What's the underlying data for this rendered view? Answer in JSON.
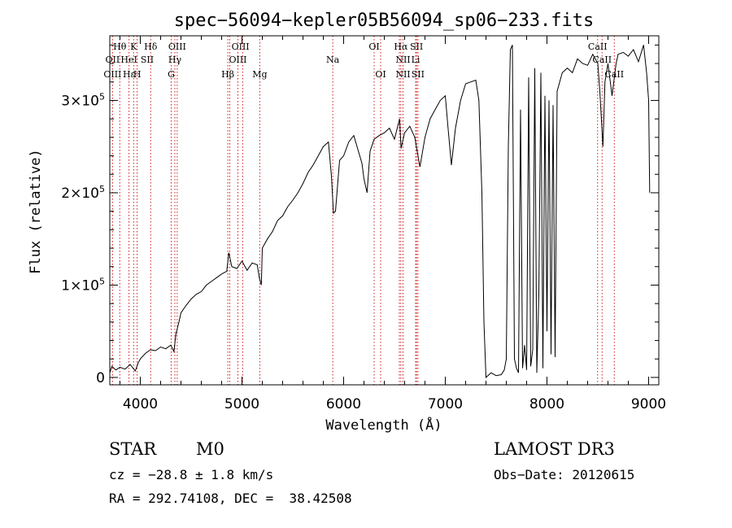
{
  "chart_data": {
    "type": "line",
    "title": "spec−56094−kepler05B56094_sp06−233.fits",
    "xlabel": "Wavelength (Å)",
    "ylabel": "Flux (relative)",
    "xlim": [
      3700,
      9100
    ],
    "ylim": [
      -8000,
      370000
    ],
    "x_ticks": [
      {
        "value": 4000,
        "label": "4000"
      },
      {
        "value": 5000,
        "label": "5000"
      },
      {
        "value": 6000,
        "label": "6000"
      },
      {
        "value": 7000,
        "label": "7000"
      },
      {
        "value": 8000,
        "label": "8000"
      },
      {
        "value": 9000,
        "label": "9000"
      }
    ],
    "y_ticks": [
      {
        "value": 0,
        "mant": "0",
        "exp": ""
      },
      {
        "value": 100000,
        "mant": "1×10",
        "exp": "5"
      },
      {
        "value": 200000,
        "mant": "2×10",
        "exp": "5"
      },
      {
        "value": 300000,
        "mant": "3×10",
        "exp": "5"
      }
    ],
    "series": [
      {
        "name": "flux",
        "points": [
          [
            3700,
            5000
          ],
          [
            3720,
            12000
          ],
          [
            3760,
            8000
          ],
          [
            3800,
            11000
          ],
          [
            3850,
            9000
          ],
          [
            3900,
            14000
          ],
          [
            3950,
            7000
          ],
          [
            3980,
            16000
          ],
          [
            4000,
            20000
          ],
          [
            4050,
            26000
          ],
          [
            4100,
            30000
          ],
          [
            4150,
            29000
          ],
          [
            4200,
            33000
          ],
          [
            4250,
            31000
          ],
          [
            4300,
            35000
          ],
          [
            4330,
            28000
          ],
          [
            4350,
            47000
          ],
          [
            4380,
            60000
          ],
          [
            4400,
            70000
          ],
          [
            4450,
            78000
          ],
          [
            4500,
            85000
          ],
          [
            4550,
            90000
          ],
          [
            4600,
            93000
          ],
          [
            4650,
            100000
          ],
          [
            4700,
            104000
          ],
          [
            4750,
            108000
          ],
          [
            4800,
            112000
          ],
          [
            4850,
            115000
          ],
          [
            4870,
            135000
          ],
          [
            4900,
            120000
          ],
          [
            4950,
            118000
          ],
          [
            5000,
            126000
          ],
          [
            5050,
            116000
          ],
          [
            5100,
            124000
          ],
          [
            5150,
            122000
          ],
          [
            5170,
            108000
          ],
          [
            5190,
            100000
          ],
          [
            5200,
            140000
          ],
          [
            5250,
            150000
          ],
          [
            5300,
            158000
          ],
          [
            5350,
            170000
          ],
          [
            5400,
            175000
          ],
          [
            5450,
            185000
          ],
          [
            5500,
            192000
          ],
          [
            5550,
            200000
          ],
          [
            5600,
            210000
          ],
          [
            5650,
            222000
          ],
          [
            5700,
            230000
          ],
          [
            5750,
            240000
          ],
          [
            5800,
            250000
          ],
          [
            5850,
            255000
          ],
          [
            5880,
            218000
          ],
          [
            5900,
            178000
          ],
          [
            5920,
            180000
          ],
          [
            5960,
            235000
          ],
          [
            6000,
            240000
          ],
          [
            6050,
            255000
          ],
          [
            6100,
            262000
          ],
          [
            6150,
            243000
          ],
          [
            6180,
            232000
          ],
          [
            6200,
            215000
          ],
          [
            6230,
            200000
          ],
          [
            6260,
            245000
          ],
          [
            6300,
            258000
          ],
          [
            6350,
            262000
          ],
          [
            6400,
            265000
          ],
          [
            6450,
            270000
          ],
          [
            6500,
            258000
          ],
          [
            6550,
            280000
          ],
          [
            6565,
            248000
          ],
          [
            6600,
            265000
          ],
          [
            6650,
            272000
          ],
          [
            6700,
            260000
          ],
          [
            6750,
            228000
          ],
          [
            6800,
            260000
          ],
          [
            6850,
            280000
          ],
          [
            6900,
            290000
          ],
          [
            6950,
            300000
          ],
          [
            7000,
            305000
          ],
          [
            7030,
            266000
          ],
          [
            7060,
            230000
          ],
          [
            7100,
            270000
          ],
          [
            7150,
            300000
          ],
          [
            7200,
            318000
          ],
          [
            7250,
            320000
          ],
          [
            7300,
            322000
          ],
          [
            7330,
            300000
          ],
          [
            7360,
            200000
          ],
          [
            7380,
            60000
          ],
          [
            7400,
            0
          ],
          [
            7450,
            5000
          ],
          [
            7500,
            2000
          ],
          [
            7550,
            3000
          ],
          [
            7580,
            8000
          ],
          [
            7600,
            20000
          ],
          [
            7620,
            250000
          ],
          [
            7640,
            355000
          ],
          [
            7660,
            360000
          ],
          [
            7680,
            20000
          ],
          [
            7700,
            10000
          ],
          [
            7720,
            5000
          ],
          [
            7740,
            290000
          ],
          [
            7760,
            10000
          ],
          [
            7780,
            35000
          ],
          [
            7800,
            8000
          ],
          [
            7820,
            325000
          ],
          [
            7840,
            12000
          ],
          [
            7860,
            30000
          ],
          [
            7880,
            335000
          ],
          [
            7900,
            5000
          ],
          [
            7920,
            90000
          ],
          [
            7940,
            330000
          ],
          [
            7960,
            10000
          ],
          [
            7980,
            305000
          ],
          [
            8000,
            50000
          ],
          [
            8020,
            300000
          ],
          [
            8040,
            25000
          ],
          [
            8060,
            295000
          ],
          [
            8080,
            22000
          ],
          [
            8100,
            310000
          ],
          [
            8150,
            330000
          ],
          [
            8200,
            335000
          ],
          [
            8250,
            330000
          ],
          [
            8300,
            345000
          ],
          [
            8350,
            340000
          ],
          [
            8400,
            338000
          ],
          [
            8450,
            350000
          ],
          [
            8500,
            340000
          ],
          [
            8520,
            310000
          ],
          [
            8550,
            250000
          ],
          [
            8570,
            320000
          ],
          [
            8600,
            340000
          ],
          [
            8640,
            305000
          ],
          [
            8680,
            340000
          ],
          [
            8700,
            350000
          ],
          [
            8750,
            352000
          ],
          [
            8800,
            348000
          ],
          [
            8850,
            355000
          ],
          [
            8900,
            342000
          ],
          [
            8950,
            360000
          ],
          [
            8980,
            330000
          ],
          [
            9000,
            300000
          ],
          [
            9010,
            200000
          ]
        ]
      }
    ],
    "reference_lines": [
      {
        "name": "Hb",
        "lambda": 4861
      },
      {
        "name": "Hb2",
        "lambda": 4880
      },
      {
        "name": "OIII_a",
        "lambda": 4960
      },
      {
        "name": "OIII_b",
        "lambda": 5007
      },
      {
        "name": "Mg",
        "lambda": 5175
      },
      {
        "name": "Na",
        "lambda": 5893
      },
      {
        "name": "OI_a",
        "lambda": 6300
      },
      {
        "name": "OI_b",
        "lambda": 6364
      },
      {
        "name": "NII_a",
        "lambda": 6548
      },
      {
        "name": "Ha",
        "lambda": 6563
      },
      {
        "name": "NII_b",
        "lambda": 6584
      },
      {
        "name": "SII_a",
        "lambda": 6717
      },
      {
        "name": "SII_b",
        "lambda": 6731
      },
      {
        "name": "Li",
        "lambda": 6708
      },
      {
        "name": "CaII_a",
        "lambda": 8498
      },
      {
        "name": "CaII_b",
        "lambda": 8542
      },
      {
        "name": "CaII_c",
        "lambda": 8662
      },
      {
        "name": "OII",
        "lambda": 3727
      },
      {
        "name": "Hth",
        "lambda": 3798
      },
      {
        "name": "Hep",
        "lambda": 3889
      },
      {
        "name": "K",
        "lambda": 3934
      },
      {
        "name": "H",
        "lambda": 3969
      },
      {
        "name": "Hd",
        "lambda": 4102
      },
      {
        "name": "G",
        "lambda": 4304
      },
      {
        "name": "Hg",
        "lambda": 4340
      },
      {
        "name": "OIII_c",
        "lambda": 4363
      }
    ],
    "line_labels": [
      {
        "text": "Hθ",
        "lambda": 3798,
        "row": 1
      },
      {
        "text": "K",
        "lambda": 3934,
        "row": 1
      },
      {
        "text": "Hδ",
        "lambda": 4102,
        "row": 1
      },
      {
        "text": "OIII",
        "lambda": 4363,
        "row": 1
      },
      {
        "text": "OIII",
        "lambda": 4985,
        "row": 1
      },
      {
        "text": "OI",
        "lambda": 6300,
        "row": 1
      },
      {
        "text": "Hα",
        "lambda": 6563,
        "row": 1
      },
      {
        "text": "SII",
        "lambda": 6717,
        "row": 1
      },
      {
        "text": "CaII",
        "lambda": 8498,
        "row": 1
      },
      {
        "text": "OII",
        "lambda": 3727,
        "row": 2
      },
      {
        "text": "HeI",
        "lambda": 3889,
        "row": 2
      },
      {
        "text": "SII",
        "lambda": 4068,
        "row": 2
      },
      {
        "text": "Hγ",
        "lambda": 4340,
        "row": 2
      },
      {
        "text": "OIII",
        "lambda": 4960,
        "row": 2
      },
      {
        "text": "Na",
        "lambda": 5893,
        "row": 2
      },
      {
        "text": "NII",
        "lambda": 6584,
        "row": 2
      },
      {
        "text": "Li",
        "lambda": 6708,
        "row": 2
      },
      {
        "text": "CaII",
        "lambda": 8542,
        "row": 2
      },
      {
        "text": "OIII",
        "lambda": 3727,
        "row": 3
      },
      {
        "text": "Hε",
        "lambda": 3889,
        "row": 3
      },
      {
        "text": "H",
        "lambda": 3969,
        "row": 3
      },
      {
        "text": "G",
        "lambda": 4304,
        "row": 3
      },
      {
        "text": "Hβ",
        "lambda": 4861,
        "row": 3
      },
      {
        "text": "Mg",
        "lambda": 5175,
        "row": 3
      },
      {
        "text": "OI",
        "lambda": 6364,
        "row": 3
      },
      {
        "text": "NII",
        "lambda": 6584,
        "row": 3
      },
      {
        "text": "SII",
        "lambda": 6731,
        "row": 3
      },
      {
        "text": "CaII",
        "lambda": 8662,
        "row": 3
      }
    ],
    "colors": {
      "line": "#000000",
      "reference": "#cc0000",
      "axis": "#000000"
    }
  },
  "info": {
    "class": "STAR",
    "subclass": "M0",
    "survey": "LAMOST DR3",
    "cz": "cz = −28.8 ± 1.8 km/s",
    "obs_date": "Obs−Date: 20120615",
    "coords": "RA = 292.74108, DEC =  38.42508"
  }
}
